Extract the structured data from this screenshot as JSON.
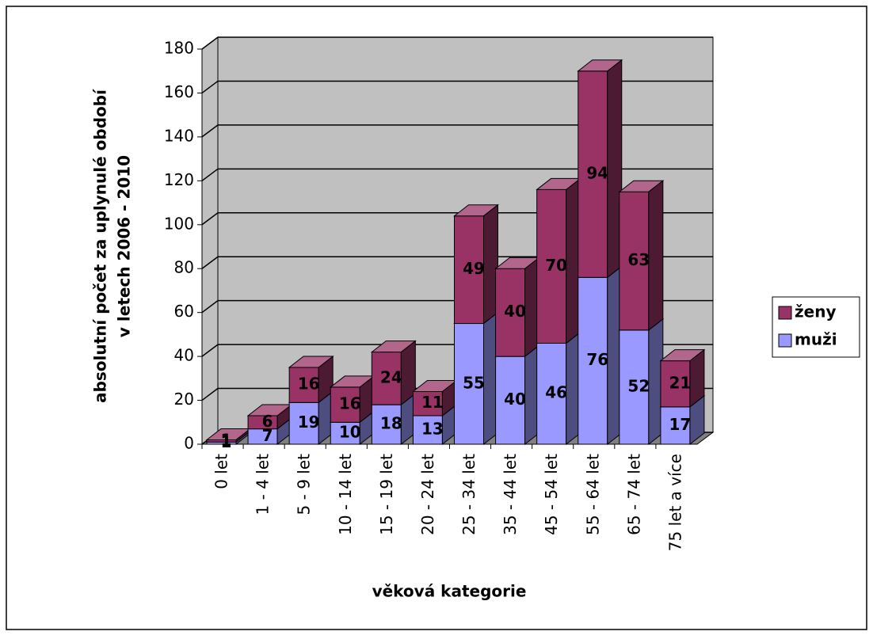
{
  "chart_data": {
    "type": "bar3d_stacked",
    "y_label": [
      "absolutní počet za uplynulé období",
      "v letech 2006 - 2010"
    ],
    "x_label": "věková kategorie",
    "categories": [
      "0 let",
      "1 - 4 let",
      "5 - 9 let",
      "10 - 14 let",
      "15 - 19 let",
      "20 - 24 let",
      "25 - 34 let",
      "35 - 44 let",
      "45 - 54 let",
      "55 - 64 let",
      "65 - 74 let",
      "75 let a více"
    ],
    "series": [
      {
        "name": "muži",
        "color": "#9999ff",
        "values": [
          1,
          7,
          19,
          10,
          18,
          13,
          55,
          40,
          46,
          76,
          52,
          17
        ]
      },
      {
        "name": "ženy",
        "color": "#993366",
        "values": [
          1,
          6,
          16,
          16,
          24,
          11,
          49,
          40,
          70,
          94,
          63,
          21
        ]
      }
    ],
    "ylim": [
      0,
      180
    ],
    "yticks": [
      0,
      20,
      40,
      60,
      80,
      100,
      120,
      140,
      160,
      180
    ],
    "grid": true,
    "legend": "right"
  }
}
